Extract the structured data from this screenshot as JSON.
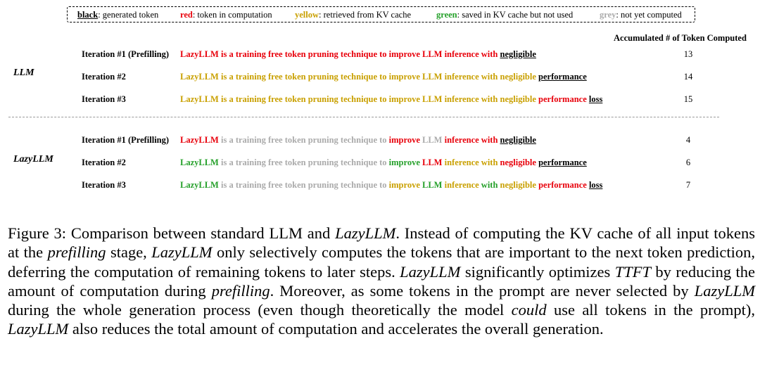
{
  "legend": {
    "items": [
      {
        "key": "black",
        "desc": ": generated token",
        "color": "#000000"
      },
      {
        "key": "red",
        "desc": ": token in computation",
        "color": "#e8000b"
      },
      {
        "key": "yellow",
        "desc": ": retrieved from KV cache",
        "color": "#c9a000"
      },
      {
        "key": "green",
        "desc": ": saved in KV cache but not used",
        "color": "#25a02a"
      },
      {
        "key": "grey",
        "desc": ": not yet computed",
        "color": "#ababab"
      }
    ]
  },
  "header": {
    "accumulated": "Accumulated # of Token Computed"
  },
  "groups": [
    {
      "label": "LLM",
      "rows": [
        {
          "iteration": "Iteration #1 (Prefilling)",
          "count": "13",
          "tokens": [
            {
              "t": "LazyLLM is a training free token pruning technique to improve LLM inference with",
              "c": "red"
            },
            {
              "t": "negligible",
              "c": "black"
            }
          ]
        },
        {
          "iteration": "Iteration #2",
          "count": "14",
          "tokens": [
            {
              "t": "LazyLLM is a training free token pruning technique to improve LLM inference with negligible",
              "c": "yellow"
            },
            {
              "t": "performance",
              "c": "black"
            }
          ]
        },
        {
          "iteration": "Iteration #3",
          "count": "15",
          "tokens": [
            {
              "t": "LazyLLM is a training free token pruning technique to improve LLM inference with negligible",
              "c": "yellow"
            },
            {
              "t": "performance",
              "c": "red"
            },
            {
              "t": "loss",
              "c": "black"
            }
          ]
        }
      ]
    },
    {
      "label": "LazyLLM",
      "rows": [
        {
          "iteration": "Iteration #1 (Prefilling)",
          "count": "4",
          "tokens": [
            {
              "t": "LazyLLM",
              "c": "red"
            },
            {
              "t": "is a training free token pruning technique to",
              "c": "grey"
            },
            {
              "t": "improve",
              "c": "red"
            },
            {
              "t": "LLM",
              "c": "grey"
            },
            {
              "t": "inference with",
              "c": "red"
            },
            {
              "t": "negligible",
              "c": "black"
            }
          ]
        },
        {
          "iteration": "Iteration #2",
          "count": "6",
          "tokens": [
            {
              "t": "LazyLLM",
              "c": "green"
            },
            {
              "t": "is a training free token pruning technique to",
              "c": "grey"
            },
            {
              "t": "improve",
              "c": "green"
            },
            {
              "t": "LLM",
              "c": "red"
            },
            {
              "t": "inference with",
              "c": "yellow"
            },
            {
              "t": "negligible",
              "c": "red"
            },
            {
              "t": "performance",
              "c": "black"
            }
          ]
        },
        {
          "iteration": "Iteration #3",
          "count": "7",
          "tokens": [
            {
              "t": "LazyLLM",
              "c": "green"
            },
            {
              "t": "is a training free token pruning technique to",
              "c": "grey"
            },
            {
              "t": "improve",
              "c": "yellow"
            },
            {
              "t": "LLM",
              "c": "green"
            },
            {
              "t": "inference",
              "c": "yellow"
            },
            {
              "t": "with",
              "c": "green"
            },
            {
              "t": "negligible",
              "c": "yellow"
            },
            {
              "t": "performance",
              "c": "red"
            },
            {
              "t": "loss",
              "c": "black"
            }
          ]
        }
      ]
    }
  ],
  "caption": [
    {
      "t": "Figure 3: Comparison between standard LLM and ",
      "i": false
    },
    {
      "t": "LazyLLM",
      "i": true
    },
    {
      "t": ". Instead of computing the KV cache of all input tokens at the ",
      "i": false
    },
    {
      "t": "prefilling",
      "i": true
    },
    {
      "t": " stage, ",
      "i": false
    },
    {
      "t": "LazyLLM",
      "i": true
    },
    {
      "t": " only selectively computes the tokens that are important to the next token prediction, deferring the computation of remaining tokens to later steps. ",
      "i": false
    },
    {
      "t": "LazyLLM",
      "i": true
    },
    {
      "t": " significantly optimizes ",
      "i": false
    },
    {
      "t": "TTFT",
      "i": true
    },
    {
      "t": " by reducing the amount of computation during ",
      "i": false
    },
    {
      "t": "prefilling",
      "i": true
    },
    {
      "t": ". Moreover, as some tokens in the prompt are never selected by ",
      "i": false
    },
    {
      "t": "LazyLLM",
      "i": true
    },
    {
      "t": " during the whole generation process (even though theoretically the model ",
      "i": false
    },
    {
      "t": "could",
      "i": true
    },
    {
      "t": " use all tokens in the prompt), ",
      "i": false
    },
    {
      "t": "LazyLLM",
      "i": true
    },
    {
      "t": " also reduces the total amount of computation and accelerates the overall generation.",
      "i": false
    }
  ]
}
